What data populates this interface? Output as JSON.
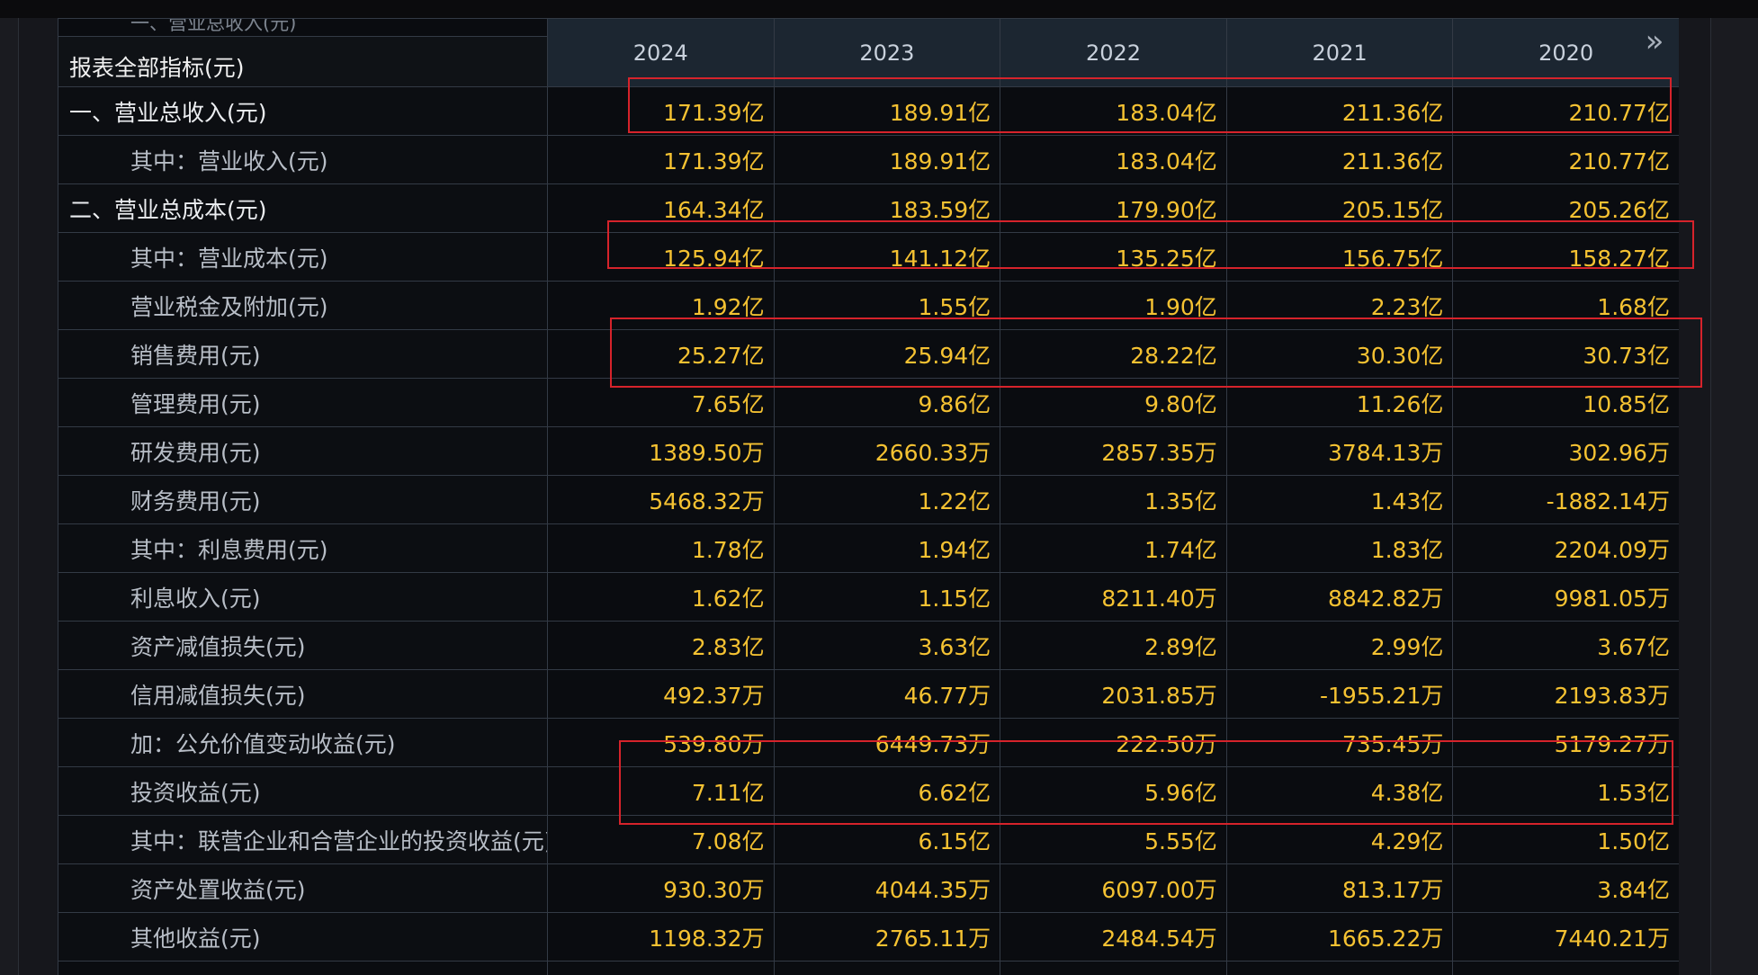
{
  "header": {
    "label": "报表全部指标(元)",
    "years": [
      "2024",
      "2023",
      "2022",
      "2021",
      "2020"
    ],
    "next_icon": "double-chevron-right-icon"
  },
  "cut_row_label": "一、营业总收入(元)",
  "rows": [
    {
      "label": "一、营业总收入(元)",
      "values": [
        "171.39亿",
        "189.91亿",
        "183.04亿",
        "211.36亿",
        "210.77亿"
      ]
    },
    {
      "label": "其中：营业收入(元)",
      "values": [
        "171.39亿",
        "189.91亿",
        "183.04亿",
        "211.36亿",
        "210.77亿"
      ]
    },
    {
      "label": "二、营业总成本(元)",
      "values": [
        "164.34亿",
        "183.59亿",
        "179.90亿",
        "205.15亿",
        "205.26亿"
      ]
    },
    {
      "label": "其中：营业成本(元)",
      "values": [
        "125.94亿",
        "141.12亿",
        "135.25亿",
        "156.75亿",
        "158.27亿"
      ]
    },
    {
      "label": "营业税金及附加(元)",
      "values": [
        "1.92亿",
        "1.55亿",
        "1.90亿",
        "2.23亿",
        "1.68亿"
      ]
    },
    {
      "label": "销售费用(元)",
      "values": [
        "25.27亿",
        "25.94亿",
        "28.22亿",
        "30.30亿",
        "30.73亿"
      ]
    },
    {
      "label": "管理费用(元)",
      "values": [
        "7.65亿",
        "9.86亿",
        "9.80亿",
        "11.26亿",
        "10.85亿"
      ]
    },
    {
      "label": "研发费用(元)",
      "values": [
        "1389.50万",
        "2660.33万",
        "2857.35万",
        "3784.13万",
        "302.96万"
      ]
    },
    {
      "label": "财务费用(元)",
      "values": [
        "5468.32万",
        "1.22亿",
        "1.35亿",
        "1.43亿",
        "-1882.14万"
      ]
    },
    {
      "label": "其中：利息费用(元)",
      "values": [
        "1.78亿",
        "1.94亿",
        "1.74亿",
        "1.83亿",
        "2204.09万"
      ]
    },
    {
      "label": "利息收入(元)",
      "values": [
        "1.62亿",
        "1.15亿",
        "8211.40万",
        "8842.82万",
        "9981.05万"
      ]
    },
    {
      "label": "资产减值损失(元)",
      "values": [
        "2.83亿",
        "3.63亿",
        "2.89亿",
        "2.99亿",
        "3.67亿"
      ]
    },
    {
      "label": "信用减值损失(元)",
      "values": [
        "492.37万",
        "46.77万",
        "2031.85万",
        "-1955.21万",
        "2193.83万"
      ]
    },
    {
      "label": "加：公允价值变动收益(元)",
      "values": [
        "539.80万",
        "6449.73万",
        "222.50万",
        "735.45万",
        "5179.27万"
      ]
    },
    {
      "label": "投资收益(元)",
      "values": [
        "7.11亿",
        "6.62亿",
        "5.96亿",
        "4.38亿",
        "1.53亿"
      ]
    },
    {
      "label": "其中：联营企业和合营企业的投资收益(元)",
      "values": [
        "7.08亿",
        "6.15亿",
        "5.55亿",
        "4.29亿",
        "1.50亿"
      ]
    },
    {
      "label": "资产处置收益(元)",
      "values": [
        "930.30万",
        "4044.35万",
        "6097.00万",
        "813.17万",
        "3.84亿"
      ]
    },
    {
      "label": "其他收益(元)",
      "values": [
        "1198.32万",
        "2765.11万",
        "2484.54万",
        "1665.22万",
        "7440.21万"
      ]
    }
  ],
  "main_row_indices": [
    0,
    2
  ],
  "highlight_color": "#d6232b",
  "value_color": "#f5c232"
}
